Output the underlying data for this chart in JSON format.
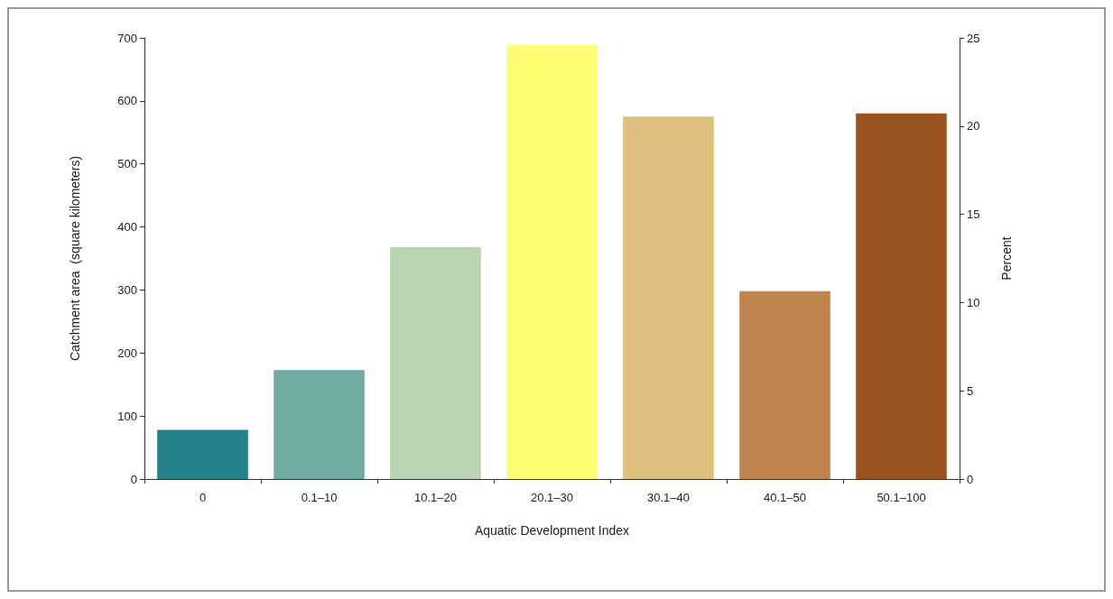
{
  "chart_data": {
    "type": "bar",
    "xlabel": "Aquatic Development Index",
    "ylabel": "Catchment area  (square kilometers)",
    "y2label": "Percent",
    "categories": [
      "0",
      "0.1–10",
      "10.1–20",
      "20.1–30",
      "30.1–40",
      "40.1–50",
      "50.1–100"
    ],
    "values": [
      78,
      173,
      368,
      689,
      575,
      298,
      580
    ],
    "colors": [
      "#23808d",
      "#72aba3",
      "#b8d4b0",
      "#ffff73",
      "#dfc07f",
      "#c0844c",
      "#9b5320"
    ],
    "ylim": [
      0,
      700
    ],
    "yticks": [
      0,
      100,
      200,
      300,
      400,
      500,
      600,
      700
    ],
    "y2lim": [
      0,
      25
    ],
    "y2ticks": [
      0,
      5,
      10,
      15,
      20,
      25
    ],
    "data_labels": false
  }
}
